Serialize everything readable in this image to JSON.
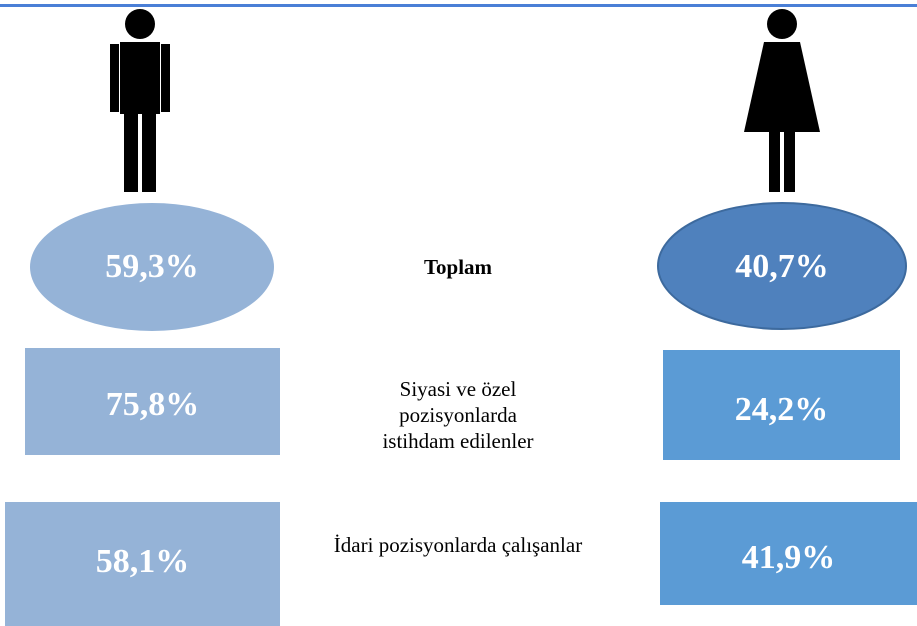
{
  "rows": [
    {
      "label": "Toplam",
      "male": "59,3%",
      "female": "40,7%"
    },
    {
      "label": "Siyasi ve özel pozisyonlarda istihdam edilenler",
      "male": "75,8%",
      "female": "24,2%"
    },
    {
      "label": "İdari pozisyonlarda çalışanlar",
      "male": "58,1%",
      "female": "41,9%"
    }
  ]
}
